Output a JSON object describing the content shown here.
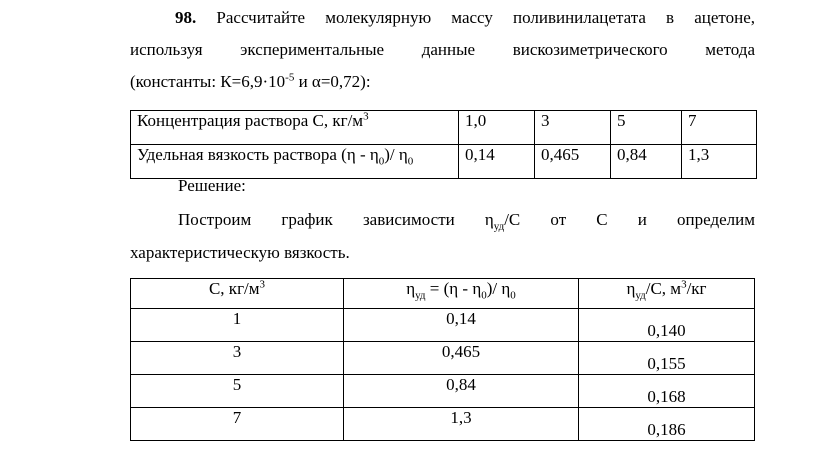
{
  "problem": {
    "number": "98.",
    "lines": [
      "Рассчитайте молекулярную массу поливинилацетата в ацетоне,",
      "используя экспериментальные данные вискозиметрического метода"
    ],
    "last_line": [
      "(константы: К=6,9·10",
      "-5",
      " и α=0,72):"
    ]
  },
  "table1": {
    "rows": [
      {
        "label": [
          "Концентрация раствора С, кг/м",
          "3"
        ],
        "values": [
          "1,0",
          "3",
          "5",
          "7"
        ]
      },
      {
        "label": [
          "Удельная вязкость раствора (η - η",
          "0",
          ")/ η",
          "0"
        ],
        "values": [
          "0,14",
          "0,465",
          "0,84",
          "1,3"
        ]
      }
    ]
  },
  "solution": {
    "heading": "Решение:",
    "line1": [
      "Построим график зависимости η",
      "уд",
      "/С от С и определим"
    ],
    "line2": "характеристическую вязкость."
  },
  "table2": {
    "header": [
      [
        "С, кг/м",
        "3"
      ],
      [
        "η",
        "уд",
        " = (η - η",
        "0",
        ")/ η",
        "0"
      ],
      [
        "η",
        "уд",
        "/С, м",
        "3",
        "/кг"
      ]
    ],
    "rows": [
      [
        "1",
        "0,14",
        "0,140"
      ],
      [
        "3",
        "0,465",
        "0,155"
      ],
      [
        "5",
        "0,84",
        "0,168"
      ],
      [
        "7",
        "1,3",
        "0,186"
      ]
    ]
  }
}
